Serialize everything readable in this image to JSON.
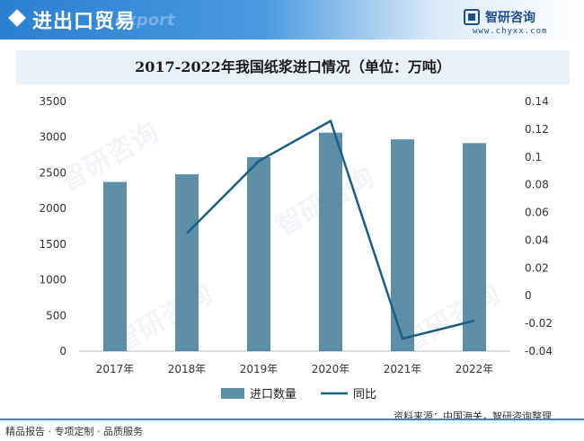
{
  "header": {
    "title": "进出口贸易",
    "watermark": "export",
    "brand_name": "智研咨询",
    "brand_url": "www.chyxx.com"
  },
  "watermark_text": "智研咨询",
  "chart_data": {
    "type": "bar",
    "title": "2017-2022年我国纸浆进口情况（单位：万吨）",
    "categories": [
      "2017年",
      "2018年",
      "2019年",
      "2020年",
      "2021年",
      "2022年"
    ],
    "series": [
      {
        "name": "进口数量",
        "type": "bar",
        "axis": "left",
        "color": "#5b8fa8",
        "values": [
          2372,
          2479,
          2720,
          3063,
          2969,
          2917
        ]
      },
      {
        "name": "同比",
        "type": "line",
        "axis": "right",
        "color": "#1c5d82",
        "values": [
          null,
          0.045,
          0.097,
          0.126,
          -0.031,
          -0.018
        ]
      }
    ],
    "y_left": {
      "min": 0,
      "max": 3500,
      "ticks": [
        "0",
        "500",
        "1000",
        "1500",
        "2000",
        "2500",
        "3000",
        "3500"
      ]
    },
    "y_right": {
      "min": -0.04,
      "max": 0.14,
      "ticks": [
        "-0.04",
        "-0.02",
        "0",
        "0.02",
        "0.04",
        "0.06",
        "0.08",
        "0.1",
        "0.12",
        "0.14"
      ]
    },
    "grid": false,
    "legend": "bottom-center"
  },
  "footer": {
    "left": "精品报告 · 专项定制 · 品质服务",
    "source": "资料来源：中国海关，智研咨询整理"
  }
}
